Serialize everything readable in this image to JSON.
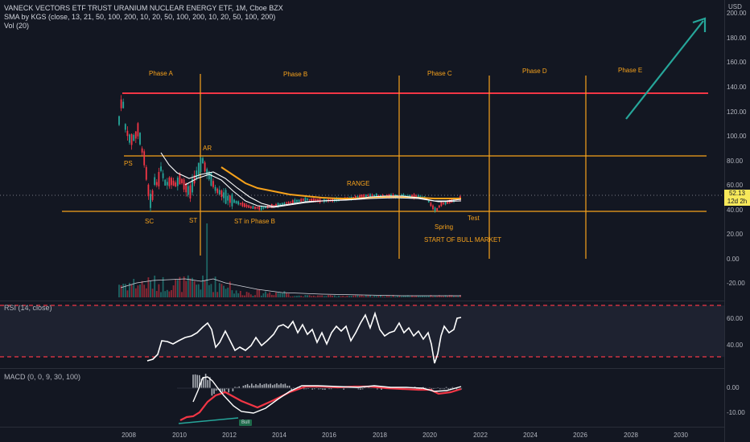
{
  "header": {
    "title": "VANECK VECTORS ETF TRUST URANIUM NUCLEAR ENERGY ETF, 1M, Cboe BZX",
    "sma": "SMA by KGS (close, 13, 21, 50, 100, 200, 10, 20, 50, 100, 200, 10, 20, 50, 100, 200)",
    "vol": "Vol (20)"
  },
  "currency": "USD",
  "price_axis": [
    "200.00",
    "180.00",
    "160.00",
    "140.00",
    "120.00",
    "100.00",
    "80.00",
    "60.00",
    "40.00",
    "20.00",
    "0.00",
    "-20.00"
  ],
  "last_price": {
    "value": "52.13",
    "countdown": "12d 2h"
  },
  "time_axis": [
    "2008",
    "2010",
    "2012",
    "2014",
    "2016",
    "2018",
    "2020",
    "2022",
    "2024",
    "2026",
    "2028",
    "2030"
  ],
  "phases": [
    "Phase A",
    "Phase B",
    "Phase C",
    "Phase D",
    "Phase E"
  ],
  "annotations": {
    "ps": "PS",
    "ar": "AR",
    "sc": "SC",
    "st": "ST",
    "st_b": "ST in Phase B",
    "range": "RANGE",
    "spring": "Spring",
    "test": "Test",
    "bull_market": "START OF BULL MARKET"
  },
  "rsi": {
    "label": "RSI (14, close)",
    "ticks": [
      "60.00",
      "40.00"
    ]
  },
  "macd": {
    "label": "MACD (0, 0, 9, 30, 100)",
    "ticks": [
      "0.00",
      "-10.00"
    ],
    "badge": "Bull"
  },
  "colors": {
    "background": "#131722",
    "orange": "#f7a21b",
    "red": "#f23645",
    "green": "#26a69a",
    "white": "#ffffff"
  }
}
